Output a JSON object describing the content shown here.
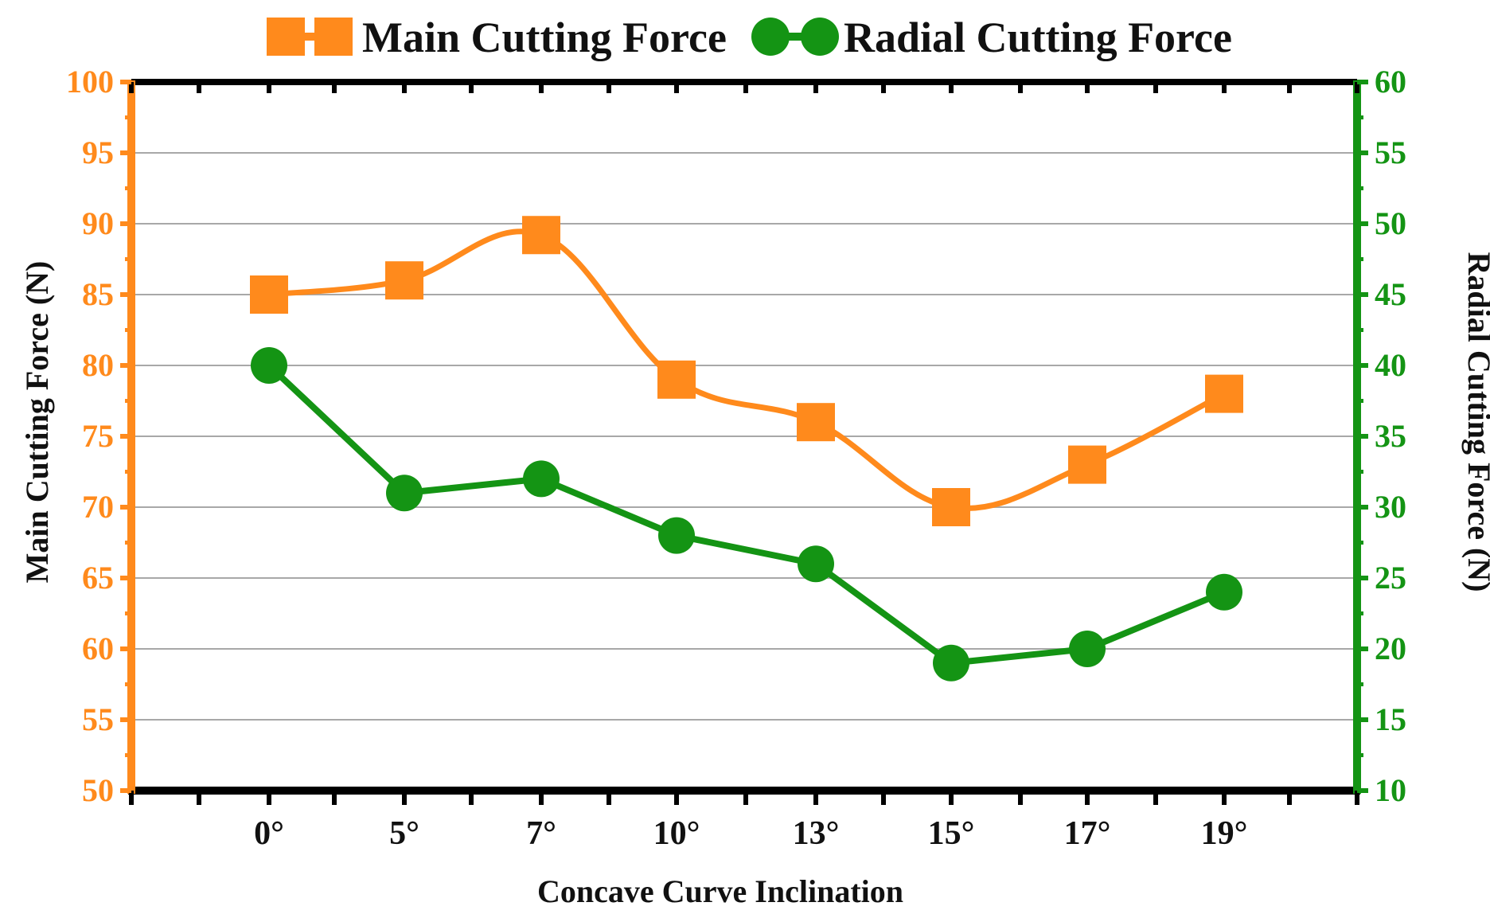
{
  "colors": {
    "main": "#FF8A1C",
    "radial": "#149414",
    "frame": "#000000",
    "grid": "#A8A8A8",
    "text": "#111111"
  },
  "chart_data": {
    "type": "line",
    "title": "",
    "categories": [
      "0°",
      "5°",
      "7°",
      "10°",
      "13°",
      "15°",
      "17°",
      "19°"
    ],
    "xlabel": "Concave Curve Inclination",
    "ylabel_left": "Main Cutting Force (N)",
    "ylabel_right": "Radial Cutting Force (N)",
    "ylim_left": [
      50,
      100
    ],
    "ylim_right": [
      10,
      60
    ],
    "yticks_left": [
      50,
      55,
      60,
      65,
      70,
      75,
      80,
      85,
      90,
      95,
      100
    ],
    "yticks_right": [
      10,
      15,
      20,
      25,
      30,
      35,
      40,
      45,
      50,
      55,
      60
    ],
    "grid": true,
    "legend_position": "top",
    "series": [
      {
        "name": "Main Cutting Force",
        "axis": "left",
        "marker": "square",
        "values": [
          85,
          86,
          89.2,
          79,
          76,
          70,
          73,
          78
        ]
      },
      {
        "name": "Radial Cutting Force",
        "axis": "right",
        "marker": "circle",
        "values": [
          40,
          31,
          32,
          28,
          26,
          19,
          20,
          24
        ]
      }
    ]
  }
}
